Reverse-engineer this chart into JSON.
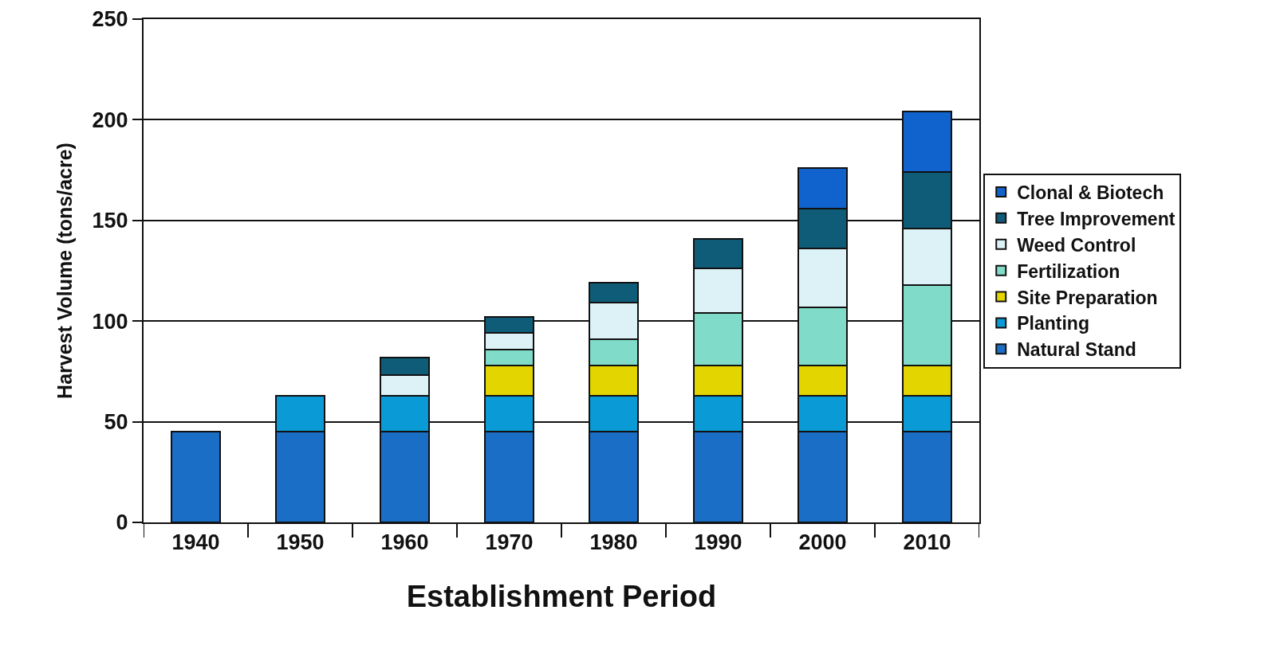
{
  "chart_data": {
    "type": "bar",
    "stacked": true,
    "xlabel": "Establishment Period",
    "ylabel": "Harvest Volume (tons/acre)",
    "categories": [
      "1940",
      "1950",
      "1960",
      "1970",
      "1980",
      "1990",
      "2000",
      "2010"
    ],
    "series": [
      {
        "name": "Natural Stand",
        "color": "#1a6ec6",
        "values": [
          45,
          45,
          45,
          45,
          45,
          45,
          45,
          45
        ]
      },
      {
        "name": "Planting",
        "color": "#0a9bd6",
        "values": [
          null,
          18,
          18,
          18,
          18,
          18,
          18,
          18
        ]
      },
      {
        "name": "Site Preparation",
        "color": "#e2d500",
        "values": [
          null,
          null,
          null,
          15,
          15,
          15,
          15,
          15
        ]
      },
      {
        "name": "Fertilization",
        "color": "#80dcc9",
        "values": [
          null,
          null,
          null,
          8,
          13,
          26,
          29,
          40
        ]
      },
      {
        "name": "Weed Control",
        "color": "#dcf2f7",
        "values": [
          null,
          null,
          10,
          8,
          18,
          22,
          29,
          28
        ]
      },
      {
        "name": "Tree Improvement",
        "color": "#0e5c78",
        "values": [
          null,
          null,
          9,
          8,
          10,
          15,
          20,
          28
        ]
      },
      {
        "name": "Clonal & Biotech",
        "color": "#1062cc",
        "values": [
          null,
          null,
          null,
          null,
          null,
          null,
          20,
          30
        ]
      }
    ],
    "ylim": [
      0,
      250
    ],
    "yticks": [
      0,
      50,
      100,
      150,
      200,
      250
    ],
    "grid": "y",
    "legend": "right"
  }
}
